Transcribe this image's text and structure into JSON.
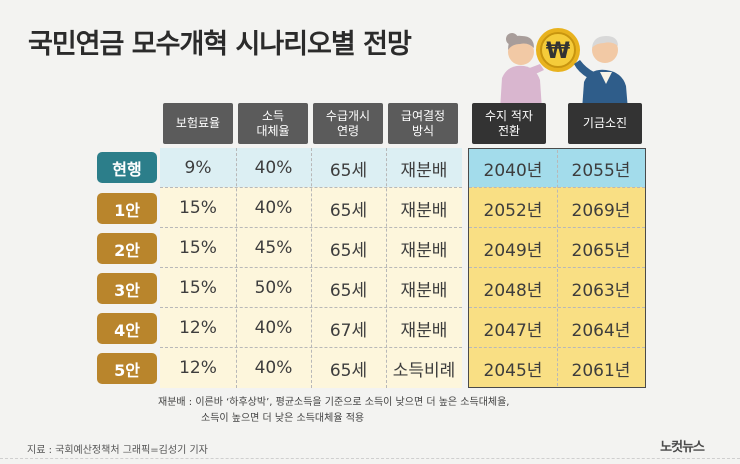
{
  "title": "국민연금 모수개혁 시나리오별 전망",
  "headers": [
    "보험료율",
    "소득\n대체율",
    "수급개시\n연령",
    "급여결정\n방식",
    "수지 적자\n전환",
    "기금소진"
  ],
  "rows": [
    {
      "label": "현행",
      "cells": [
        "9%",
        "40%",
        "65세",
        "재분배",
        "2040년",
        "2055년"
      ]
    },
    {
      "label": "1안",
      "cells": [
        "15%",
        "40%",
        "65세",
        "재분배",
        "2052년",
        "2069년"
      ]
    },
    {
      "label": "2안",
      "cells": [
        "15%",
        "45%",
        "65세",
        "재분배",
        "2049년",
        "2065년"
      ]
    },
    {
      "label": "3안",
      "cells": [
        "15%",
        "50%",
        "65세",
        "재분배",
        "2048년",
        "2063년"
      ]
    },
    {
      "label": "4안",
      "cells": [
        "12%",
        "40%",
        "67세",
        "재분배",
        "2047년",
        "2064년"
      ]
    },
    {
      "label": "5안",
      "cells": [
        "12%",
        "40%",
        "65세",
        "소득비례",
        "2045년",
        "2061년"
      ]
    }
  ],
  "note": {
    "line1": "재분배 : 이른바 ‘하후상박’, 평균소득을 기준으로 소득이 낮으면 더 높은 소득대체율,",
    "line2": "소득이 높으면 더 낮은 소득대체율 적용"
  },
  "footer": "지료 : 국회예산정책처   그래픽=김성기 기자",
  "logo": "노컷뉴스",
  "coin_symbol": "₩",
  "colors": {
    "current_label": "#2c7e8a",
    "plan_label": "#b9852c",
    "left_bg": "#fdf6dc",
    "right_bg": "#f9df84",
    "current_left_bg": "#dceff3",
    "current_right_bg": "#a3dceb",
    "header_bg": "#5b5b5b",
    "header_dark_bg": "#333333"
  }
}
